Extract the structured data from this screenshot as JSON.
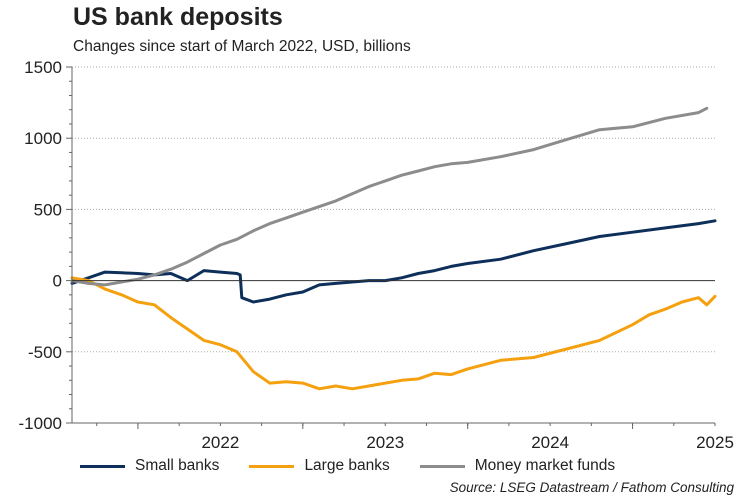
{
  "chart_data": {
    "type": "line",
    "title": "US bank deposits",
    "subtitle": "Changes since start of March 2022, USD, billions",
    "ylim": [
      -1000,
      1500
    ],
    "yticks": [
      "1500",
      "1000",
      "500",
      "0",
      "-500",
      "-1000"
    ],
    "ytick_values": [
      1500,
      1000,
      500,
      0,
      -500,
      -1000
    ],
    "xlim": [
      2021.6,
      2025.5
    ],
    "xticks": [
      "2022",
      "2023",
      "2024",
      "2025"
    ],
    "xtick_values": [
      2022,
      2023,
      2024,
      2025
    ],
    "grid": "horizontal dotted",
    "legend_position": "bottom",
    "source": "Source: LSEG Datastream / Fathom Consulting",
    "series": [
      {
        "name": "Small banks",
        "color": "#0d2f5a",
        "x": [
          2021.6,
          2021.7,
          2021.8,
          2021.9,
          2022.0,
          2022.1,
          2022.2,
          2022.3,
          2022.4,
          2022.5,
          2022.6,
          2022.62,
          2022.63,
          2022.7,
          2022.8,
          2022.9,
          2023.0,
          2023.1,
          2023.2,
          2023.3,
          2023.4,
          2023.5,
          2023.6,
          2023.7,
          2023.8,
          2023.9,
          2024.0,
          2024.2,
          2024.4,
          2024.6,
          2024.8,
          2025.0,
          2025.2,
          2025.4,
          2025.5
        ],
        "values": [
          -20,
          20,
          60,
          55,
          50,
          40,
          50,
          0,
          70,
          60,
          50,
          40,
          -120,
          -150,
          -130,
          -100,
          -80,
          -30,
          -20,
          -10,
          0,
          0,
          20,
          50,
          70,
          100,
          120,
          150,
          210,
          260,
          310,
          340,
          370,
          400,
          420
        ]
      },
      {
        "name": "Large banks",
        "color": "#f5a00f",
        "x": [
          2021.6,
          2021.7,
          2021.8,
          2021.9,
          2022.0,
          2022.1,
          2022.2,
          2022.3,
          2022.4,
          2022.5,
          2022.6,
          2022.7,
          2022.8,
          2022.9,
          2023.0,
          2023.1,
          2023.2,
          2023.3,
          2023.4,
          2023.5,
          2023.6,
          2023.7,
          2023.8,
          2023.9,
          2024.0,
          2024.2,
          2024.4,
          2024.6,
          2024.8,
          2025.0,
          2025.1,
          2025.2,
          2025.3,
          2025.4,
          2025.45,
          2025.5
        ],
        "values": [
          20,
          0,
          -60,
          -100,
          -150,
          -170,
          -260,
          -340,
          -420,
          -450,
          -500,
          -640,
          -720,
          -710,
          -720,
          -760,
          -740,
          -760,
          -740,
          -720,
          -700,
          -690,
          -650,
          -660,
          -620,
          -560,
          -540,
          -480,
          -420,
          -310,
          -240,
          -200,
          -150,
          -120,
          -170,
          -110
        ]
      },
      {
        "name": "Money market funds",
        "color": "#8c8c8c",
        "x": [
          2021.6,
          2021.7,
          2021.8,
          2021.9,
          2022.0,
          2022.1,
          2022.2,
          2022.3,
          2022.4,
          2022.5,
          2022.6,
          2022.7,
          2022.8,
          2022.9,
          2023.0,
          2023.1,
          2023.2,
          2023.3,
          2023.4,
          2023.5,
          2023.6,
          2023.7,
          2023.8,
          2023.9,
          2024.0,
          2024.2,
          2024.4,
          2024.6,
          2024.8,
          2025.0,
          2025.2,
          2025.4,
          2025.45
        ],
        "values": [
          0,
          -20,
          -30,
          -10,
          10,
          40,
          80,
          130,
          190,
          250,
          290,
          350,
          400,
          440,
          480,
          520,
          560,
          610,
          660,
          700,
          740,
          770,
          800,
          820,
          830,
          870,
          920,
          990,
          1060,
          1080,
          1140,
          1180,
          1210
        ]
      }
    ]
  }
}
